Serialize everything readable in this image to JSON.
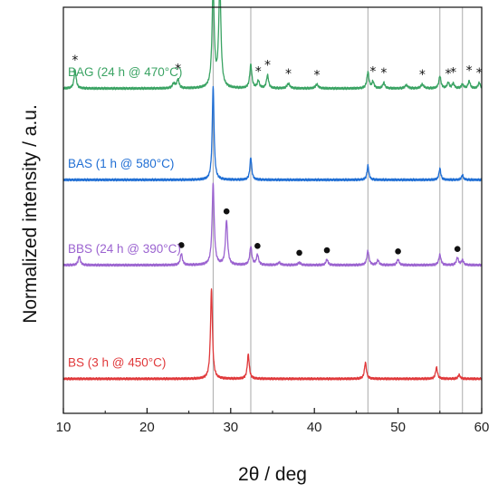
{
  "chart_data": {
    "type": "line",
    "title": "",
    "xlabel": "2θ / deg",
    "ylabel": "Normalized intensity / a.u.",
    "xlim": [
      10,
      60
    ],
    "xticks": [
      10,
      20,
      30,
      40,
      50,
      60
    ],
    "yticks_shown": false,
    "grid": false,
    "reference_lines_x": [
      27.9,
      32.4,
      46.4,
      55.0,
      57.7
    ],
    "reference_line_color": "#aaaaaa",
    "series": [
      {
        "name": "BAG (24 h @ 470°C)",
        "color": "#3aa363",
        "baseline": 0.8,
        "peaks": [
          {
            "x": 11.4,
            "h": 0.045,
            "w": 0.15
          },
          {
            "x": 23.2,
            "h": 0.012,
            "w": 0.2
          },
          {
            "x": 23.7,
            "h": 0.022,
            "w": 0.15
          },
          {
            "x": 27.9,
            "h": 0.24,
            "w": 0.16
          },
          {
            "x": 28.7,
            "h": 0.25,
            "w": 0.16
          },
          {
            "x": 32.4,
            "h": 0.058,
            "w": 0.15
          },
          {
            "x": 33.3,
            "h": 0.018,
            "w": 0.15
          },
          {
            "x": 34.4,
            "h": 0.032,
            "w": 0.15
          },
          {
            "x": 36.9,
            "h": 0.012,
            "w": 0.2
          },
          {
            "x": 40.3,
            "h": 0.01,
            "w": 0.2
          },
          {
            "x": 46.4,
            "h": 0.04,
            "w": 0.15
          },
          {
            "x": 47.0,
            "h": 0.016,
            "w": 0.15
          },
          {
            "x": 48.3,
            "h": 0.014,
            "w": 0.15
          },
          {
            "x": 51.0,
            "h": 0.008,
            "w": 0.2
          },
          {
            "x": 52.9,
            "h": 0.01,
            "w": 0.2
          },
          {
            "x": 55.0,
            "h": 0.03,
            "w": 0.15
          },
          {
            "x": 56.0,
            "h": 0.014,
            "w": 0.15
          },
          {
            "x": 56.6,
            "h": 0.012,
            "w": 0.15
          },
          {
            "x": 57.7,
            "h": 0.01,
            "w": 0.15
          },
          {
            "x": 58.5,
            "h": 0.018,
            "w": 0.15
          },
          {
            "x": 59.7,
            "h": 0.014,
            "w": 0.15
          }
        ]
      },
      {
        "name": "BAS (1 h @ 580°C)",
        "color": "#1f6ed4",
        "baseline": 0.575,
        "peaks": [
          {
            "x": 27.9,
            "h": 0.23,
            "w": 0.13
          },
          {
            "x": 32.4,
            "h": 0.055,
            "w": 0.13
          },
          {
            "x": 46.4,
            "h": 0.035,
            "w": 0.13
          },
          {
            "x": 55.0,
            "h": 0.028,
            "w": 0.13
          },
          {
            "x": 57.7,
            "h": 0.012,
            "w": 0.13
          }
        ]
      },
      {
        "name": "BBS (24 h @ 390°C)",
        "color": "#9b63d0",
        "baseline": 0.365,
        "peaks": [
          {
            "x": 11.9,
            "h": 0.022,
            "w": 0.15
          },
          {
            "x": 24.1,
            "h": 0.028,
            "w": 0.15
          },
          {
            "x": 27.9,
            "h": 0.2,
            "w": 0.15
          },
          {
            "x": 29.5,
            "h": 0.11,
            "w": 0.15
          },
          {
            "x": 32.4,
            "h": 0.045,
            "w": 0.15
          },
          {
            "x": 33.2,
            "h": 0.025,
            "w": 0.15
          },
          {
            "x": 35.8,
            "h": 0.006,
            "w": 0.2
          },
          {
            "x": 38.2,
            "h": 0.006,
            "w": 0.2
          },
          {
            "x": 41.5,
            "h": 0.014,
            "w": 0.15
          },
          {
            "x": 46.4,
            "h": 0.035,
            "w": 0.15
          },
          {
            "x": 47.6,
            "h": 0.012,
            "w": 0.15
          },
          {
            "x": 50.0,
            "h": 0.014,
            "w": 0.15
          },
          {
            "x": 55.0,
            "h": 0.026,
            "w": 0.15
          },
          {
            "x": 57.1,
            "h": 0.018,
            "w": 0.15
          },
          {
            "x": 57.7,
            "h": 0.012,
            "w": 0.15
          }
        ]
      },
      {
        "name": "BS (3 h @ 450°C)",
        "color": "#e0383a",
        "baseline": 0.085,
        "peaks": [
          {
            "x": 27.7,
            "h": 0.22,
            "w": 0.14
          },
          {
            "x": 32.1,
            "h": 0.06,
            "w": 0.14
          },
          {
            "x": 46.1,
            "h": 0.04,
            "w": 0.14
          },
          {
            "x": 54.6,
            "h": 0.028,
            "w": 0.14
          },
          {
            "x": 57.3,
            "h": 0.01,
            "w": 0.14
          }
        ]
      }
    ],
    "annotations": {
      "star_symbol": "*",
      "star_series": "BAG (24 h @ 470°C)",
      "star_x": [
        11.4,
        23.7,
        28.7,
        33.3,
        34.4,
        36.9,
        40.3,
        47.0,
        48.3,
        52.9,
        56.0,
        56.6,
        58.5,
        59.7
      ],
      "dot_series": "BBS (24 h @ 390°C)",
      "dot_x": [
        24.1,
        29.5,
        33.2,
        38.2,
        41.5,
        50.0,
        57.1
      ]
    }
  }
}
